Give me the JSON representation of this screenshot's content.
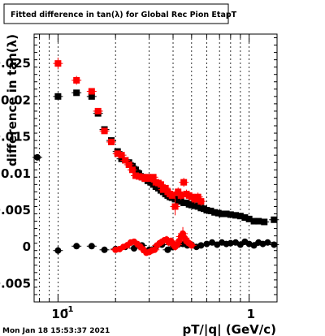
{
  "chart_data": {
    "type": "scatter",
    "title": "Fitted difference in tan(λ) for Global Rec Pion EtapT",
    "xlabel": "pT/|q| (GeV/c)",
    "ylabel": "difference in tan(λ)",
    "xscale": "log",
    "xlim": [
      0.075,
      1.4
    ],
    "ylim": [
      -0.0075,
      0.029
    ],
    "grid": true,
    "x_tick_labels": [
      {
        "x": 0.1,
        "base": "10",
        "exp": "-1"
      },
      {
        "x": 1.0,
        "base": "1",
        "exp": ""
      }
    ],
    "y_tick_labels": [
      {
        "y": -0.005,
        "label": "-0.005"
      },
      {
        "y": 0,
        "label": "0"
      },
      {
        "y": 0.005,
        "label": "0.005"
      },
      {
        "y": 0.01,
        "label": "0.01"
      },
      {
        "y": 0.015,
        "label": "0.015"
      },
      {
        "y": 0.02,
        "label": "0.02"
      },
      {
        "y": 0.025,
        "label": "0.025"
      }
    ],
    "series": [
      {
        "marker": "square",
        "color": "#000000",
        "x": [
          0.1,
          0.125,
          0.15,
          0.162,
          0.175,
          0.19,
          0.205,
          0.215,
          0.225,
          0.235,
          0.245,
          0.255,
          0.265,
          0.275,
          0.285,
          0.295,
          0.305,
          0.315,
          0.325,
          0.335,
          0.345,
          0.355,
          0.365,
          0.375,
          0.385,
          0.395,
          0.41,
          0.425,
          0.44,
          0.455,
          0.47,
          0.485,
          0.5,
          0.52,
          0.54,
          0.56,
          0.58,
          0.6,
          0.63,
          0.66,
          0.69,
          0.72,
          0.76,
          0.8,
          0.85,
          0.9,
          0.95,
          1.0,
          1.06,
          1.12,
          1.2,
          1.35
        ],
        "y": [
          0.0205,
          0.021,
          0.0205,
          0.0182,
          0.016,
          0.0145,
          0.013,
          0.012,
          0.0118,
          0.0115,
          0.011,
          0.0105,
          0.01,
          0.0095,
          0.0093,
          0.009,
          0.0088,
          0.0085,
          0.0082,
          0.008,
          0.0077,
          0.0075,
          0.0072,
          0.007,
          0.0068,
          0.0067,
          0.0065,
          0.0063,
          0.0062,
          0.006,
          0.006,
          0.0058,
          0.0057,
          0.0056,
          0.0055,
          0.0053,
          0.0052,
          0.005,
          0.0049,
          0.0047,
          0.0046,
          0.0045,
          0.0045,
          0.0044,
          0.0043,
          0.0042,
          0.004,
          0.0038,
          0.0035,
          0.0035,
          0.0034,
          0.0037
        ],
        "yerr": [
          0.0005,
          0.0004,
          0.0003,
          0.0003,
          0.0002,
          0.0002,
          0.0002,
          0.0002,
          0.0002,
          0.0002,
          0.0002,
          0.0002,
          0.0002,
          0.0002,
          0.0002,
          0.0002,
          0.0002,
          0.0002,
          0.0002,
          0.0002,
          0.0002,
          0.0002,
          0.0002,
          0.0002,
          0.0002,
          0.0002,
          0.0002,
          0.0002,
          0.0002,
          0.0002,
          0.0002,
          0.0002,
          0.0002,
          0.0002,
          0.0002,
          0.0002,
          0.0002,
          0.0002,
          0.0002,
          0.0002,
          0.0002,
          0.0002,
          0.0002,
          0.0002,
          0.0002,
          0.0002,
          0.0002,
          0.0002,
          0.0002,
          0.0002,
          0.0002,
          0.0002
        ]
      },
      {
        "marker": "square",
        "color": "#ff0000",
        "x": [
          0.1,
          0.125,
          0.15,
          0.162,
          0.175,
          0.19,
          0.205,
          0.215,
          0.225,
          0.235,
          0.245,
          0.255,
          0.265,
          0.275,
          0.285,
          0.295,
          0.305,
          0.315,
          0.325,
          0.335,
          0.345,
          0.355,
          0.365,
          0.375,
          0.385,
          0.395,
          0.41,
          0.425,
          0.44,
          0.455,
          0.47,
          0.485,
          0.5,
          0.52,
          0.54,
          0.56
        ],
        "y": [
          0.025,
          0.0227,
          0.0212,
          0.0185,
          0.0158,
          0.0143,
          0.0127,
          0.0125,
          0.0118,
          0.0112,
          0.0105,
          0.0097,
          0.0096,
          0.0095,
          0.0093,
          0.0095,
          0.0093,
          0.0095,
          0.0088,
          0.0087,
          0.0085,
          0.0078,
          0.008,
          0.0075,
          0.0072,
          0.007,
          0.0055,
          0.0075,
          0.007,
          0.0088,
          0.0072,
          0.007,
          0.0068,
          0.0065,
          0.0068,
          0.0062
        ],
        "yerr": [
          0.0008,
          0.0006,
          0.0004,
          0.0004,
          0.0003,
          0.0003,
          0.0003,
          0.0003,
          0.0003,
          0.0003,
          0.0003,
          0.0003,
          0.0003,
          0.0003,
          0.0003,
          0.0003,
          0.0003,
          0.0003,
          0.0003,
          0.0003,
          0.0003,
          0.0003,
          0.0003,
          0.0004,
          0.0004,
          0.0004,
          0.0012,
          0.0006,
          0.0006,
          0.0006,
          0.0006,
          0.0006,
          0.0006,
          0.0006,
          0.0006,
          0.0006
        ]
      },
      {
        "marker": "circle",
        "color": "#000000",
        "x": [
          0.078,
          0.1,
          0.125,
          0.15,
          0.175,
          0.2,
          0.225,
          0.25,
          0.275,
          0.3,
          0.325,
          0.35,
          0.375,
          0.4,
          0.425,
          0.45,
          0.475,
          0.5,
          0.53,
          0.56,
          0.6,
          0.64,
          0.68,
          0.72,
          0.76,
          0.8,
          0.85,
          0.9,
          0.95,
          1.0,
          1.06,
          1.12,
          1.18,
          1.25,
          1.35
        ],
        "y": [
          0.0122,
          -0.0005,
          0.0001,
          0.0001,
          -0.0004,
          -0.0003,
          0.0,
          -0.0002,
          0.0002,
          -0.0004,
          0.0,
          0.0003,
          -0.0004,
          0.0,
          0.0003,
          0.0004,
          0.0002,
          0.0003,
          0.0,
          0.0002,
          0.0004,
          0.0006,
          0.0003,
          0.0006,
          0.0004,
          0.0005,
          0.0006,
          0.0003,
          0.0007,
          0.0004,
          0.0002,
          0.0006,
          0.0004,
          0.0006,
          0.0003
        ],
        "yerr": [
          0.0003,
          0.0006,
          0.0004,
          0.0003,
          0.0002,
          0.0002,
          0.0002,
          0.0002,
          0.0002,
          0.0002,
          0.0002,
          0.0002,
          0.0002,
          0.0002,
          0.0002,
          0.0002,
          0.0002,
          0.0002,
          0.0002,
          0.0002,
          0.0002,
          0.0002,
          0.0002,
          0.0002,
          0.0002,
          0.0002,
          0.0002,
          0.0002,
          0.0002,
          0.0002,
          0.0002,
          0.0002,
          0.0002,
          0.0002,
          0.0002
        ]
      },
      {
        "marker": "circle",
        "color": "#ff0000",
        "x": [
          0.2,
          0.21,
          0.22,
          0.23,
          0.24,
          0.25,
          0.26,
          0.27,
          0.28,
          0.29,
          0.3,
          0.31,
          0.32,
          0.33,
          0.34,
          0.35,
          0.36,
          0.37,
          0.38,
          0.39,
          0.4,
          0.41,
          0.42,
          0.43,
          0.44,
          0.45,
          0.46,
          0.47,
          0.48,
          0.49,
          0.5
        ],
        "y": [
          -0.0004,
          -0.0003,
          0.0,
          0.0002,
          0.0006,
          0.0007,
          0.0004,
          0.0,
          -0.0004,
          -0.0008,
          -0.0007,
          -0.0005,
          -0.0004,
          0.0002,
          0.0005,
          0.0007,
          0.0009,
          0.001,
          0.0006,
          0.0008,
          0.0004,
          0.0,
          0.0003,
          0.0008,
          0.0014,
          0.0018,
          0.0012,
          0.0008,
          0.0006,
          0.0004,
          0.0002
        ],
        "yerr": [
          0.0003,
          0.0003,
          0.0003,
          0.0003,
          0.0003,
          0.0003,
          0.0003,
          0.0003,
          0.0003,
          0.0004,
          0.0004,
          0.0004,
          0.0004,
          0.0004,
          0.0004,
          0.0004,
          0.0004,
          0.0005,
          0.0005,
          0.0005,
          0.0005,
          0.0005,
          0.0005,
          0.0006,
          0.0008,
          0.0009,
          0.0008,
          0.0006,
          0.0005,
          0.0005,
          0.0005
        ]
      }
    ]
  },
  "footer": {
    "timestamp": "Mon Jan 18 15:53:37 2021"
  }
}
